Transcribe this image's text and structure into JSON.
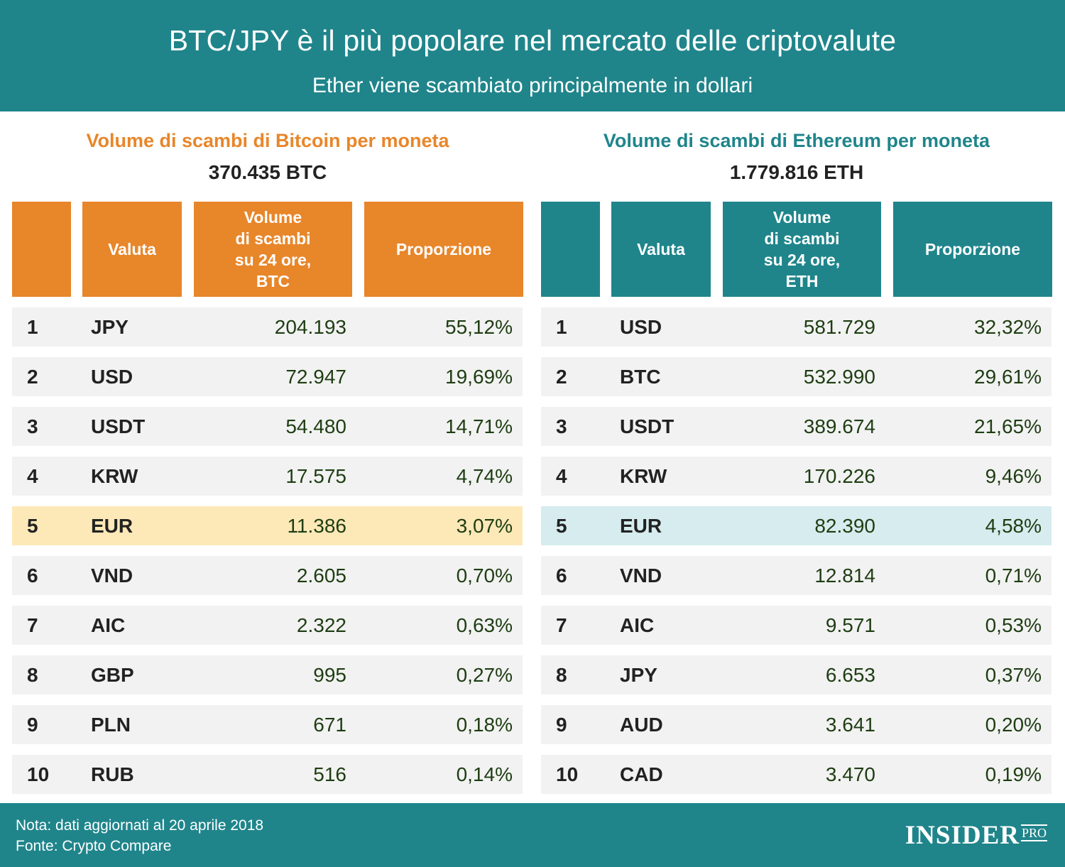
{
  "header": {
    "title": "BTC/JPY è il più popolare nel mercato delle criptovalute",
    "subtitle": "Ether viene scambiato principalmente in dollari"
  },
  "columns": {
    "valuta": "Valuta",
    "volume_btc": "Volume\ndi scambi\nsu 24 ore,\nBTC",
    "volume_eth": "Volume\ndi scambi\nsu 24 ore,\nETH",
    "proporzione": "Proporzione"
  },
  "footer": {
    "note": "Nota: dati aggiornati al 20 aprile 2018",
    "source": "Fonte: Crypto Compare",
    "logo_main": "INSIDER",
    "logo_pro": "PRO"
  },
  "colors": {
    "header_bg": "#1f858b",
    "bitcoin_accent": "#e8862a",
    "ethereum_accent": "#1f858b",
    "bitcoin_highlight": "#fde8b7",
    "ethereum_highlight": "#d6ecee",
    "row_bg": "#f2f2f2"
  },
  "chart_data": [
    {
      "type": "table",
      "title": "Volume di scambi di Bitcoin per moneta",
      "total": "370.435 BTC",
      "highlight_rank": 5,
      "rows": [
        {
          "rank": "1",
          "currency": "JPY",
          "volume": "204.193",
          "share": "55,12%"
        },
        {
          "rank": "2",
          "currency": "USD",
          "volume": "72.947",
          "share": "19,69%"
        },
        {
          "rank": "3",
          "currency": "USDT",
          "volume": "54.480",
          "share": "14,71%"
        },
        {
          "rank": "4",
          "currency": "KRW",
          "volume": "17.575",
          "share": "4,74%"
        },
        {
          "rank": "5",
          "currency": "EUR",
          "volume": "11.386",
          "share": "3,07%"
        },
        {
          "rank": "6",
          "currency": "VND",
          "volume": "2.605",
          "share": "0,70%"
        },
        {
          "rank": "7",
          "currency": "AIC",
          "volume": "2.322",
          "share": "0,63%"
        },
        {
          "rank": "8",
          "currency": "GBP",
          "volume": "995",
          "share": "0,27%"
        },
        {
          "rank": "9",
          "currency": "PLN",
          "volume": "671",
          "share": "0,18%"
        },
        {
          "rank": "10",
          "currency": "RUB",
          "volume": "516",
          "share": "0,14%"
        }
      ]
    },
    {
      "type": "table",
      "title": "Volume di scambi di Ethereum per moneta",
      "total": "1.779.816 ETH",
      "highlight_rank": 5,
      "rows": [
        {
          "rank": "1",
          "currency": "USD",
          "volume": "581.729",
          "share": "32,32%"
        },
        {
          "rank": "2",
          "currency": "BTC",
          "volume": "532.990",
          "share": "29,61%"
        },
        {
          "rank": "3",
          "currency": "USDT",
          "volume": "389.674",
          "share": "21,65%"
        },
        {
          "rank": "4",
          "currency": "KRW",
          "volume": "170.226",
          "share": "9,46%"
        },
        {
          "rank": "5",
          "currency": "EUR",
          "volume": "82.390",
          "share": "4,58%"
        },
        {
          "rank": "6",
          "currency": "VND",
          "volume": "12.814",
          "share": "0,71%"
        },
        {
          "rank": "7",
          "currency": "AIC",
          "volume": "9.571",
          "share": "0,53%"
        },
        {
          "rank": "8",
          "currency": "JPY",
          "volume": "6.653",
          "share": "0,37%"
        },
        {
          "rank": "9",
          "currency": "AUD",
          "volume": "3.641",
          "share": "0,20%"
        },
        {
          "rank": "10",
          "currency": "CAD",
          "volume": "3.470",
          "share": "0,19%"
        }
      ]
    }
  ]
}
